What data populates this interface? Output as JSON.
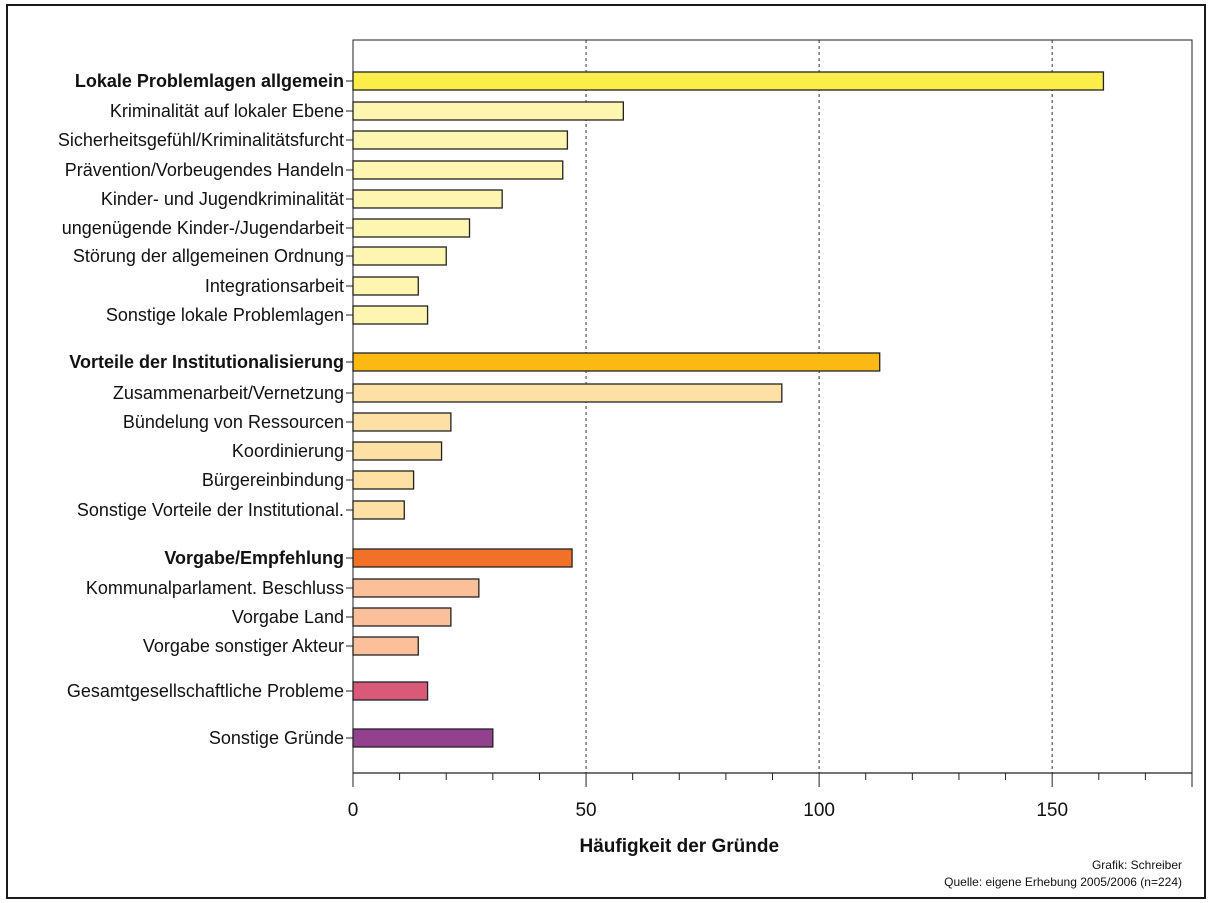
{
  "chart_data": {
    "type": "bar",
    "orientation": "horizontal",
    "xlabel": "Häufigkeit der Gründe",
    "xlim": [
      0,
      180
    ],
    "x_ticks": [
      0,
      50,
      100,
      150
    ],
    "grid": "vertical dashed at major ticks",
    "categories": [
      {
        "label": "Lokale Problemlagen allgemein",
        "value": 161,
        "bold": true,
        "color": "#fbee4a"
      },
      {
        "label": "Kriminalität auf lokaler Ebene",
        "value": 58,
        "bold": false,
        "color": "#fef6b0"
      },
      {
        "label": "Sicherheitsgefühl/Kriminalitätsfurcht",
        "value": 46,
        "bold": false,
        "color": "#fef6b0"
      },
      {
        "label": "Prävention/Vorbeugendes Handeln",
        "value": 45,
        "bold": false,
        "color": "#fef6b0"
      },
      {
        "label": "Kinder- und Jugendkriminalität",
        "value": 32,
        "bold": false,
        "color": "#fef6b0"
      },
      {
        "label": "ungenügende Kinder-/Jugendarbeit",
        "value": 25,
        "bold": false,
        "color": "#fef6b0"
      },
      {
        "label": "Störung der allgemeinen Ordnung",
        "value": 20,
        "bold": false,
        "color": "#fef6b0"
      },
      {
        "label": "Integrationsarbeit",
        "value": 14,
        "bold": false,
        "color": "#fef6b0"
      },
      {
        "label": "Sonstige lokale Problemlagen",
        "value": 16,
        "bold": false,
        "color": "#fef6b0"
      },
      {
        "label": "Vorteile der Institutionalisierung",
        "value": 113,
        "bold": true,
        "color": "#fbb915"
      },
      {
        "label": "Zusammenarbeit/Vernetzung",
        "value": 92,
        "bold": false,
        "color": "#fde1a4"
      },
      {
        "label": "Bündelung von Ressourcen",
        "value": 21,
        "bold": false,
        "color": "#fde1a4"
      },
      {
        "label": "Koordinierung",
        "value": 19,
        "bold": false,
        "color": "#fde1a4"
      },
      {
        "label": "Bürgereinbindung",
        "value": 13,
        "bold": false,
        "color": "#fde1a4"
      },
      {
        "label": "Sonstige Vorteile der Institutional.",
        "value": 11,
        "bold": false,
        "color": "#fde1a4"
      },
      {
        "label": "Vorgabe/Empfehlung",
        "value": 47,
        "bold": true,
        "color": "#f07127"
      },
      {
        "label": "Kommunalparlament. Beschluss",
        "value": 27,
        "bold": false,
        "color": "#fbbf99"
      },
      {
        "label": "Vorgabe Land",
        "value": 21,
        "bold": false,
        "color": "#fbbf99"
      },
      {
        "label": "Vorgabe sonstiger Akteur",
        "value": 14,
        "bold": false,
        "color": "#fbbf99"
      },
      {
        "label": "Gesamtgesellschaftliche Probleme",
        "value": 16,
        "bold": false,
        "color": "#d85a78"
      },
      {
        "label": "Sonstige Gründe",
        "value": 30,
        "bold": false,
        "color": "#93418e"
      }
    ]
  },
  "credits": {
    "author": "Grafik: Schreiber",
    "source": "Quelle: eigene Erhebung 2005/2006 (n=224)"
  }
}
